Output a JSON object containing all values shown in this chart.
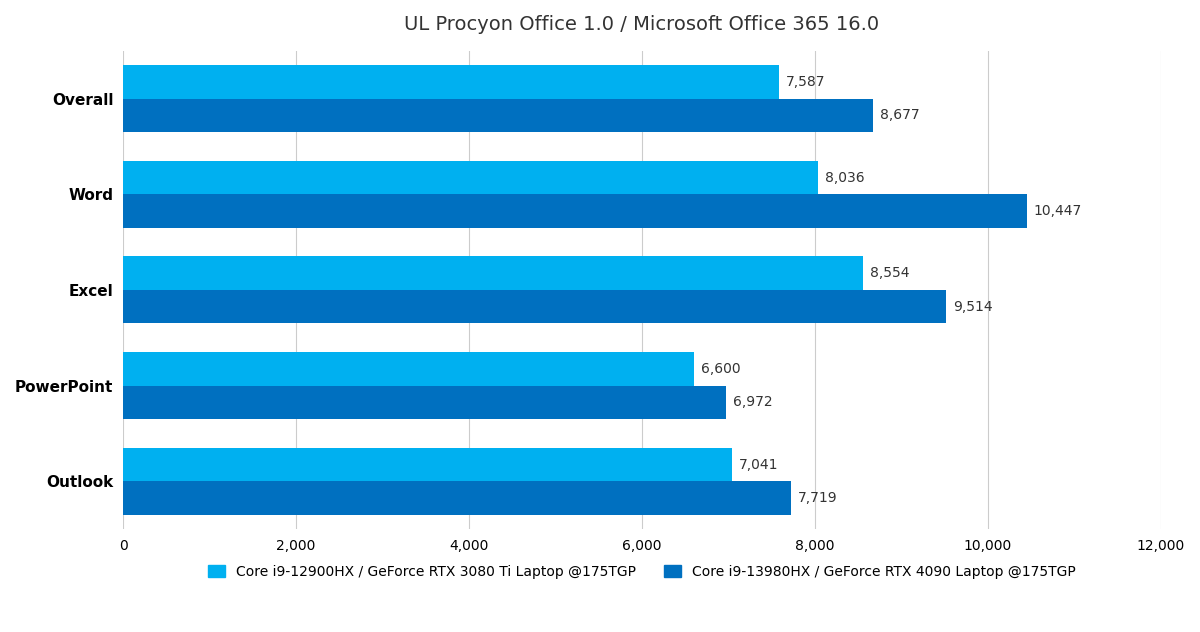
{
  "title": "UL Procyon Office 1.0 / Microsoft Office 365 16.0",
  "categories": [
    "Overall",
    "Word",
    "Excel",
    "PowerPoint",
    "Outlook"
  ],
  "series": [
    {
      "label": "Core i9-12900HX / GeForce RTX 3080 Ti Laptop @175TGP",
      "color": "#00b0f0",
      "values": [
        7587,
        8036,
        8554,
        6600,
        7041
      ]
    },
    {
      "label": "Core i9-13980HX / GeForce RTX 4090 Laptop @175TGP",
      "color": "#0070c0",
      "values": [
        8677,
        10447,
        9514,
        6972,
        7719
      ]
    }
  ],
  "xlim": [
    0,
    12000
  ],
  "xticks": [
    0,
    2000,
    4000,
    6000,
    8000,
    10000,
    12000
  ],
  "xtick_labels": [
    "0",
    "2,000",
    "4,000",
    "6,000",
    "8,000",
    "10,000",
    "12,000"
  ],
  "bar_height": 0.35,
  "background_color": "#ffffff",
  "grid_color": "#cccccc",
  "title_fontsize": 14,
  "label_fontsize": 11,
  "tick_fontsize": 10,
  "value_fontsize": 10
}
